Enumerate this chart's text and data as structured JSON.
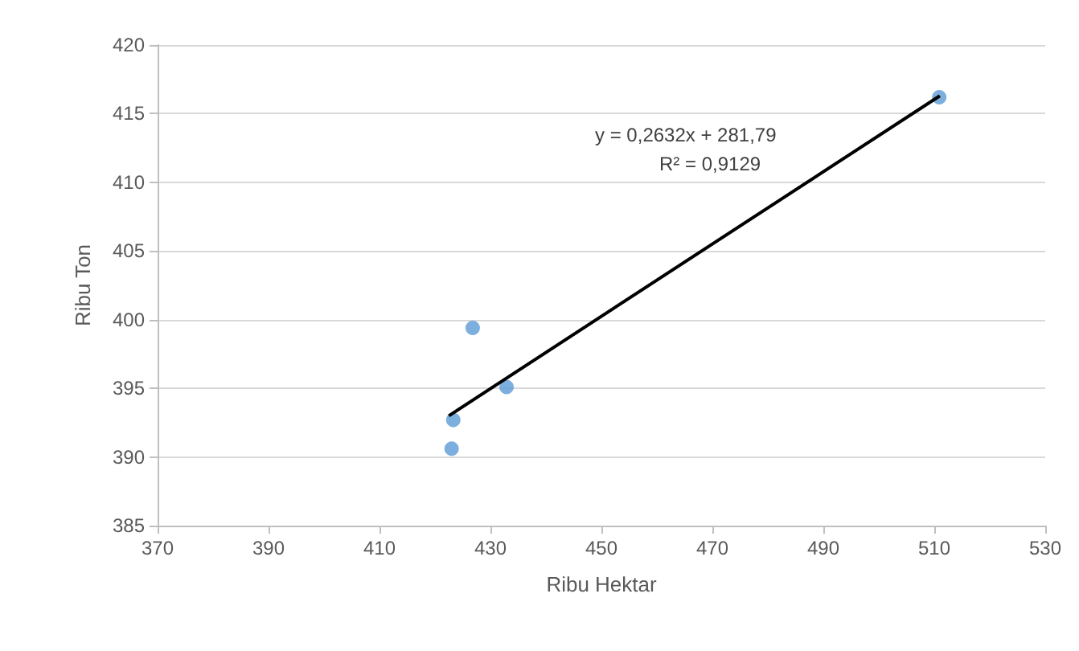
{
  "chart_data": {
    "type": "scatter",
    "xlabel": "Ribu Hektar",
    "ylabel": "Ribu Ton",
    "series": [
      {
        "color": "#5b9bd5",
        "x": [
          510.9,
          426.8,
          432.9,
          423.3,
          423.0
        ],
        "values": [
          416.2,
          399.4,
          395.1,
          392.7,
          390.6
        ]
      },
      {
        "type": "line",
        "color": "#000000",
        "x": [
          422.5,
          511
        ],
        "values": [
          393.0,
          416.3
        ],
        "marker": "none"
      }
    ],
    "xlim": [
      370,
      530
    ],
    "xticks": [
      370,
      390,
      410,
      430,
      450,
      470,
      490,
      510,
      530
    ],
    "ylim": [
      385,
      420
    ],
    "yticks": [
      385,
      390,
      395,
      400,
      405,
      410,
      415,
      420
    ],
    "grid": "y",
    "marker": "circle",
    "annotations": [
      "y = 0,2632x + 281,79",
      "R² = 0,9129"
    ]
  }
}
